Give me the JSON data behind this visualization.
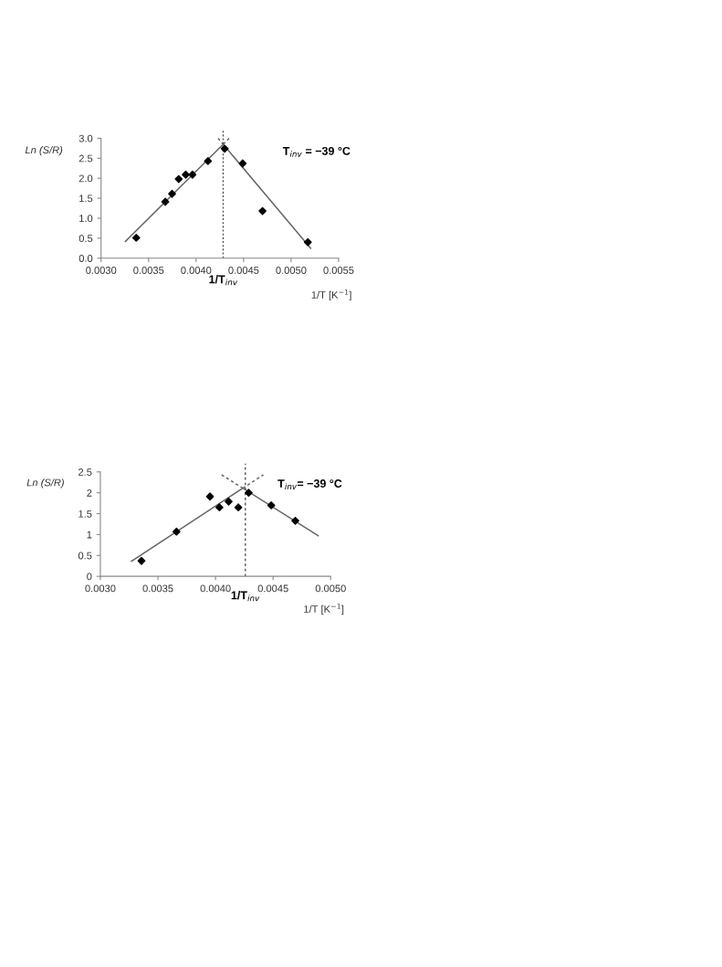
{
  "chart_data": [
    {
      "type": "scatter",
      "xlabel": "1/T [K$^{−1}$]",
      "ylabel": "Ln (S/R)",
      "annotations": [
        "T$_{inv}$ = −39 °C"
      ],
      "xlim": [
        0.003,
        0.0055
      ],
      "xticks": [
        {
          "value": 0.003,
          "label": "0.0030"
        },
        {
          "value": 0.0035,
          "label": "0.0035"
        },
        {
          "value": 0.004,
          "label": "0.0040"
        },
        {
          "value": 0.0045,
          "label": "0.0045"
        },
        {
          "value": 0.005,
          "label": "0.0050"
        },
        {
          "value": 0.0055,
          "label": "0.0055"
        }
      ],
      "ylim": [
        0,
        3.0
      ],
      "yticks": [
        {
          "value": 0,
          "label": "0.0"
        },
        {
          "value": 0.5,
          "label": "0.5"
        },
        {
          "value": 1.0,
          "label": "1.0"
        },
        {
          "value": 1.5,
          "label": "1.5"
        },
        {
          "value": 2.0,
          "label": "2.0"
        },
        {
          "value": 2.5,
          "label": "2.5"
        },
        {
          "value": 3.0,
          "label": "3.0"
        }
      ],
      "grid": false,
      "legend": false,
      "marker": "diamond",
      "ref_lines": [
        {
          "axis": "x",
          "value": 0.004285,
          "label": "1/T$_{inv}$",
          "color": "#555555",
          "line_style": "dotted"
        }
      ],
      "series": [
        {
          "color": "#000000",
          "x": [
            0.00337,
            0.003676,
            0.003747,
            0.003817,
            0.003891,
            0.003962,
            0.004125,
            0.004301,
            0.00449,
            0.004699,
            0.005176
          ],
          "values": [
            0.51,
            1.41,
            1.61,
            1.98,
            2.09,
            2.09,
            2.43,
            2.74,
            2.37,
            1.18,
            0.4
          ]
        },
        {
          "type": "line",
          "color": "#666666",
          "marker": "none",
          "line_style": "solid",
          "x": [
            0.003256,
            0.004285
          ],
          "values": [
            0.42,
            2.85
          ]
        },
        {
          "type": "line",
          "color": "#666666",
          "marker": "none",
          "line_style": "dashed",
          "x": [
            0.004285,
            0.004349
          ],
          "values": [
            2.85,
            3.0
          ]
        },
        {
          "type": "line",
          "color": "#666666",
          "marker": "none",
          "line_style": "dashed",
          "x": [
            0.004232,
            0.004285
          ],
          "values": [
            3.0,
            2.85
          ]
        },
        {
          "type": "line",
          "color": "#666666",
          "marker": "none",
          "line_style": "solid",
          "x": [
            0.004285,
            0.005205
          ],
          "values": [
            2.85,
            0.25
          ]
        }
      ]
    },
    {
      "type": "scatter",
      "xlabel": "1/T [K$^{−1}$]",
      "ylabel": "Ln (S/R)",
      "annotations": [
        "T$_{inv}$= −39 °C"
      ],
      "xlim": [
        0.003,
        0.005
      ],
      "xticks": [
        {
          "value": 0.003,
          "label": "0.0030"
        },
        {
          "value": 0.0035,
          "label": "0.0035"
        },
        {
          "value": 0.004,
          "label": "0.0040"
        },
        {
          "value": 0.0045,
          "label": "0.0045"
        },
        {
          "value": 0.005,
          "label": "0.0050"
        }
      ],
      "ylim": [
        0,
        2.5
      ],
      "yticks": [
        0,
        0.5,
        1,
        1.5,
        2,
        2.5
      ],
      "grid": false,
      "legend": false,
      "marker": "diamond",
      "ref_lines": [
        {
          "axis": "x",
          "value": 0.004259,
          "label": "1/T$_{inv}$",
          "color": "#555555",
          "line_style": "dashed"
        }
      ],
      "series": [
        {
          "color": "#000000",
          "x": [
            0.003357,
            0.003661,
            0.003952,
            0.004034,
            0.004114,
            0.004198,
            0.004288,
            0.004484,
            0.004693
          ],
          "values": [
            0.37,
            1.07,
            1.91,
            1.65,
            1.79,
            1.65,
            2.0,
            1.7,
            1.33
          ]
        },
        {
          "type": "line",
          "color": "#666666",
          "marker": "none",
          "line_style": "solid",
          "x": [
            0.00327,
            0.004237
          ],
          "values": [
            0.36,
            2.11
          ]
        },
        {
          "type": "line",
          "color": "#666666",
          "marker": "none",
          "line_style": "dashed",
          "x": [
            0.004237,
            0.004415
          ],
          "values": [
            2.11,
            2.43
          ]
        },
        {
          "type": "line",
          "color": "#666666",
          "marker": "none",
          "line_style": "dashed",
          "x": [
            0.004053,
            0.004237
          ],
          "values": [
            2.43,
            2.11
          ]
        },
        {
          "type": "line",
          "color": "#666666",
          "marker": "none",
          "line_style": "solid",
          "x": [
            0.004237,
            0.004892
          ],
          "values": [
            2.11,
            0.97
          ]
        }
      ]
    }
  ]
}
